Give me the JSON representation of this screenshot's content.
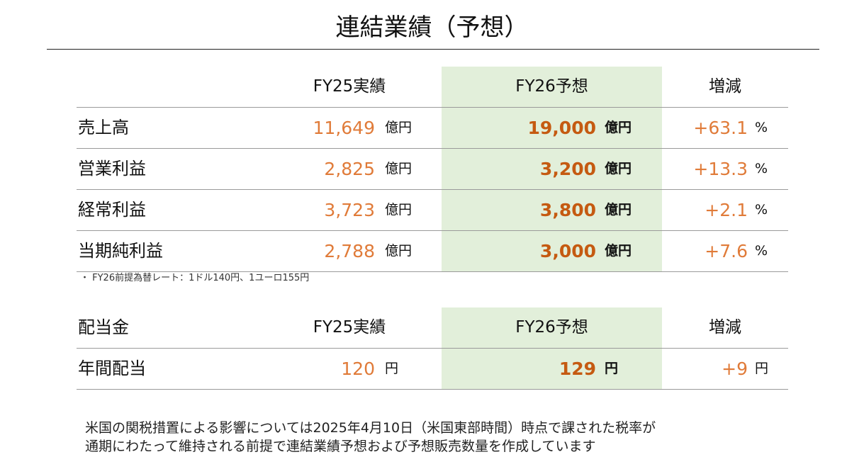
{
  "title": "連結業績（予想）",
  "results": {
    "headers": {
      "col1": "",
      "col2": "FY25実績",
      "col3": "FY26予想",
      "col4": "増減"
    },
    "rows": [
      {
        "label": "売上高",
        "actual": "11,649",
        "actual_unit": "億円",
        "forecast": "19,000",
        "forecast_unit": "億円",
        "change": "+63.1",
        "change_unit": "%"
      },
      {
        "label": "営業利益",
        "actual": "2,825",
        "actual_unit": "億円",
        "forecast": "3,200",
        "forecast_unit": "億円",
        "change": "+13.3",
        "change_unit": "%"
      },
      {
        "label": "経常利益",
        "actual": "3,723",
        "actual_unit": "億円",
        "forecast": "3,800",
        "forecast_unit": "億円",
        "change": "+2.1",
        "change_unit": "%"
      },
      {
        "label": "当期純利益",
        "actual": "2,788",
        "actual_unit": "億円",
        "forecast": "3,000",
        "forecast_unit": "億円",
        "change": "+7.6",
        "change_unit": "%"
      }
    ]
  },
  "note": "・ FY26前提為替レート：1ドル140円、1ユーロ155円",
  "dividend": {
    "headers": {
      "col1": "配当金",
      "col2": "FY25実績",
      "col3": "FY26予想",
      "col4": "増減"
    },
    "rows": [
      {
        "label": "年間配当",
        "actual": "120",
        "actual_unit": "円",
        "forecast": "129",
        "forecast_unit": "円",
        "change": "+9",
        "change_unit": "円"
      }
    ]
  },
  "footer": {
    "line1": "米国の関税措置による影響については2025年4月10日（米国東部時間）時点で課された税率が",
    "line2": "通期にわたって維持される前提で連結業績予想および予想販売数量を作成しています"
  },
  "colors": {
    "highlight": "#e2efda",
    "actual": "#e07b39",
    "forecast": "#c55a11"
  }
}
